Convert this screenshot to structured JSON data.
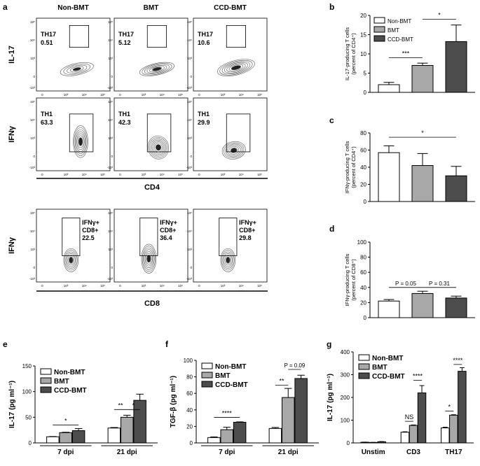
{
  "panel_letters": [
    "a",
    "b",
    "c",
    "d",
    "e",
    "f",
    "g"
  ],
  "flow": {
    "col_titles": [
      "Non-BMT",
      "BMT",
      "CCD-BMT"
    ],
    "row_ylabels": [
      "IL-17",
      "IFNγ",
      "IFNγ"
    ],
    "axis_labels": {
      "cd4": "CD4",
      "cd8": "CD8"
    },
    "ytick_labels": [
      "10⁵",
      "10⁴",
      "10³",
      "0",
      "-10³"
    ],
    "xtick_labels": [
      "0",
      "10³",
      "10⁴",
      "10⁵"
    ],
    "rows": [
      [
        {
          "name": "TH17",
          "value": "0.51"
        },
        {
          "name": "TH17",
          "value": "5.12"
        },
        {
          "name": "TH17",
          "value": "10.6"
        }
      ],
      [
        {
          "name": "TH1",
          "value": "63.3"
        },
        {
          "name": "TH1",
          "value": "42.3"
        },
        {
          "name": "TH1",
          "value": "29.9"
        }
      ],
      [
        {
          "name": "IFNγ+",
          "name2": "CD8+",
          "value": "22.5"
        },
        {
          "name": "IFNγ+",
          "name2": "CD8+",
          "value": "36.4"
        },
        {
          "name": "IFNγ+",
          "name2": "CD8+",
          "value": "29.8"
        }
      ]
    ]
  },
  "chart_data": [
    {
      "id": "b",
      "type": "bar",
      "categories": [
        "Non-BMT",
        "BMT",
        "CCD-BMT"
      ],
      "values": [
        2,
        7,
        13.2
      ],
      "errors": [
        0.6,
        0.6,
        4.3
      ],
      "ylabel": "IL-17-producing T cells",
      "ylabel2": "(percent of CD4⁺)",
      "ylim": [
        0,
        20
      ],
      "yticks": [
        0,
        5,
        10,
        15,
        20
      ],
      "legend": [
        "Non-BMT",
        "BMT",
        "CCD-BMT"
      ],
      "sig": [
        {
          "from": 0,
          "to": 1,
          "y": 9,
          "label": "***"
        },
        {
          "from": 1,
          "to": 2,
          "y": 19,
          "label": "*"
        }
      ]
    },
    {
      "id": "c",
      "type": "bar",
      "categories": [
        "Non-BMT",
        "BMT",
        "CCD-BMT"
      ],
      "values": [
        57,
        42,
        30
      ],
      "errors": [
        8,
        14,
        11
      ],
      "ylabel": "IFNγ-producing T cells",
      "ylabel2": "(percent of CD4⁺)",
      "ylim": [
        0,
        80
      ],
      "yticks": [
        0,
        20,
        40,
        60,
        80
      ],
      "sig": [
        {
          "from": 0,
          "to": 2,
          "y": 75,
          "label": "*"
        }
      ]
    },
    {
      "id": "d",
      "type": "bar",
      "categories": [
        "Non-BMT",
        "BMT",
        "CCD-BMT"
      ],
      "values": [
        22,
        32,
        26
      ],
      "errors": [
        2,
        3,
        2.5
      ],
      "ylabel": "IFNγ-producing T cells",
      "ylabel2": "(percent of CD8⁺)",
      "ylim": [
        0,
        100
      ],
      "yticks": [
        0,
        20,
        40,
        60,
        80,
        100
      ],
      "sig": [
        {
          "from": 0,
          "to": 1,
          "y": 40,
          "label": "P = 0.05"
        },
        {
          "from": 1,
          "to": 2,
          "y": 40,
          "label": "P = 0.31"
        }
      ]
    },
    {
      "id": "e",
      "type": "bar",
      "groups": [
        "7 dpi",
        "21 dpi"
      ],
      "series": [
        {
          "name": "Non-BMT",
          "values": [
            12,
            29
          ],
          "errors": [
            0.5,
            1
          ]
        },
        {
          "name": "BMT",
          "values": [
            20,
            50
          ],
          "errors": [
            0.8,
            4
          ]
        },
        {
          "name": "CCD-BMT",
          "values": [
            24,
            83
          ],
          "errors": [
            4,
            12
          ]
        }
      ],
      "ylabel": "IL-17 (pg ml⁻¹)",
      "ylim": [
        0,
        150
      ],
      "yticks": [
        0,
        50,
        100,
        150
      ],
      "legend": [
        "Non-BMT",
        "BMT",
        "CCD-BMT"
      ],
      "sig": [
        {
          "g1": 0,
          "s1": 0,
          "g2": 0,
          "s2": 2,
          "y": 35,
          "label": "*"
        },
        {
          "g1": 1,
          "s1": 0,
          "g2": 1,
          "s2": 1,
          "y": 65,
          "label": "**"
        },
        {
          "g1": 1,
          "s1": 1,
          "g2": 1,
          "s2": 2,
          "y": 65,
          "label": "*"
        }
      ]
    },
    {
      "id": "f",
      "type": "bar",
      "groups": [
        "7 dpi",
        "21 dpi"
      ],
      "series": [
        {
          "name": "Non-BMT",
          "values": [
            6.5,
            17.5
          ],
          "errors": [
            0.8,
            1.2
          ]
        },
        {
          "name": "BMT",
          "values": [
            16,
            55
          ],
          "errors": [
            3,
            11
          ]
        },
        {
          "name": "CCD-BMT",
          "values": [
            25,
            78
          ],
          "errors": [
            0.5,
            4
          ]
        }
      ],
      "ylabel": "TGF-β (pg ml⁻¹)",
      "ylim": [
        0,
        100
      ],
      "yticks": [
        0,
        20,
        40,
        60,
        80,
        100
      ],
      "legend": [
        "Non-BMT",
        "BMT",
        "CCD-BMT"
      ],
      "sig": [
        {
          "g1": 0,
          "s1": 0,
          "g2": 0,
          "s2": 2,
          "y": 31,
          "label": "****"
        },
        {
          "g1": 1,
          "s1": 0,
          "g2": 1,
          "s2": 1,
          "y": 70,
          "label": "**"
        },
        {
          "g1": 1,
          "s1": 1,
          "g2": 1,
          "s2": 2,
          "y": 89,
          "label": "P = 0.09"
        }
      ]
    },
    {
      "id": "g",
      "type": "bar",
      "groups": [
        "Unstim",
        "CD3",
        "TH17"
      ],
      "series": [
        {
          "name": "Non-BMT",
          "values": [
            3,
            47,
            66
          ],
          "errors": [
            0.5,
            2,
            3
          ]
        },
        {
          "name": "BMT",
          "values": [
            2,
            77,
            122
          ],
          "errors": [
            0.5,
            2,
            2
          ]
        },
        {
          "name": "CCD-BMT",
          "values": [
            5,
            220,
            315
          ],
          "errors": [
            1,
            32,
            16
          ]
        }
      ],
      "ylabel": "IL-17 (pg ml⁻¹)",
      "ylim": [
        0,
        400
      ],
      "yticks": [
        0,
        100,
        200,
        300,
        400
      ],
      "legend": [
        "Non-BMT",
        "BMT",
        "CCD-BMT"
      ],
      "sig": [
        {
          "g1": 1,
          "s1": 0,
          "g2": 1,
          "s2": 1,
          "y": 95,
          "label": "NS"
        },
        {
          "g1": 1,
          "s1": 1,
          "g2": 1,
          "s2": 2,
          "y": 275,
          "label": "****"
        },
        {
          "g1": 2,
          "s1": 0,
          "g2": 2,
          "s2": 1,
          "y": 140,
          "label": "*"
        },
        {
          "g1": 2,
          "s1": 1,
          "g2": 2,
          "s2": 2,
          "y": 345,
          "label": "****"
        }
      ]
    }
  ],
  "colors": {
    "fill": [
      "#ffffff",
      "#a8a8a8",
      "#4d4d4d"
    ],
    "stroke": "#000000",
    "contour": "#555555"
  }
}
